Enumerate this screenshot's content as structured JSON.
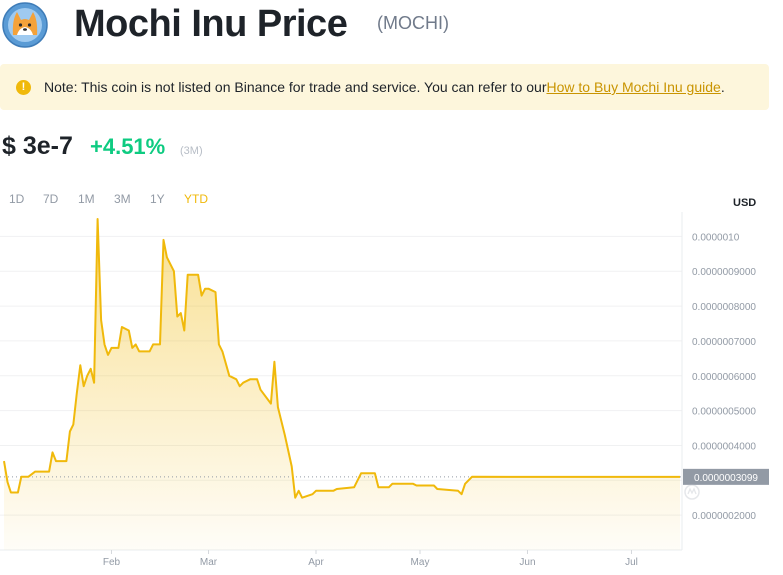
{
  "header": {
    "title": "Mochi Inu Price",
    "ticker": "(MOCHI)"
  },
  "note": {
    "text": "Note: This coin is not listed on Binance for trade and service. You can refer to our ",
    "link": "How to Buy Mochi Inu guide",
    "suffix": "."
  },
  "price": {
    "value": "$ 3e-7",
    "change": "+4.51%",
    "period": "(3M)"
  },
  "range_tabs": [
    {
      "label": "1D",
      "active": false
    },
    {
      "label": "7D",
      "active": false
    },
    {
      "label": "1M",
      "active": false
    },
    {
      "label": "3M",
      "active": false
    },
    {
      "label": "1Y",
      "active": false
    },
    {
      "label": "YTD",
      "active": true
    }
  ],
  "currency": "USD",
  "colors": {
    "accent": "#f0b90b",
    "positive": "#0ecb81",
    "note_bg": "#fdf6dc",
    "tag_bg": "#929aa5"
  },
  "icons": {
    "logo": "shiba-dog-coin-logo",
    "note": "exclamation-icon",
    "watermark": "coinmarketcap-watermark-icon"
  },
  "chart_data": {
    "type": "area",
    "title": "",
    "xlabel": "",
    "ylabel": "",
    "x_ticks": [
      "Feb",
      "Mar",
      "Apr",
      "May",
      "Jun",
      "Jul"
    ],
    "y_ticks": [
      "0.0000010",
      "0.0000009000",
      "0.0000008000",
      "0.0000007000",
      "0.0000006000",
      "0.0000005000",
      "0.0000004000",
      "0.0000002000"
    ],
    "current_price_label": "0.0000003099",
    "current_price": 3.099e-07,
    "ylim": [
      1e-07,
      1.07e-06
    ],
    "grid": true,
    "series": [
      {
        "values": [
          [
            "2022-01-01",
            3.55e-07
          ],
          [
            "2022-01-02",
            2.95e-07
          ],
          [
            "2022-01-03",
            2.65e-07
          ],
          [
            "2022-01-05",
            2.65e-07
          ],
          [
            "2022-01-06",
            3.1e-07
          ],
          [
            "2022-01-08",
            3.1e-07
          ],
          [
            "2022-01-10",
            3.25e-07
          ],
          [
            "2022-01-14",
            3.25e-07
          ],
          [
            "2022-01-15",
            3.8e-07
          ],
          [
            "2022-01-16",
            3.55e-07
          ],
          [
            "2022-01-19",
            3.55e-07
          ],
          [
            "2022-01-20",
            4.4e-07
          ],
          [
            "2022-01-21",
            4.6e-07
          ],
          [
            "2022-01-22",
            5.5e-07
          ],
          [
            "2022-01-23",
            6.3e-07
          ],
          [
            "2022-01-24",
            5.7e-07
          ],
          [
            "2022-01-25",
            6e-07
          ],
          [
            "2022-01-26",
            6.2e-07
          ],
          [
            "2022-01-27",
            5.8e-07
          ],
          [
            "2022-01-28",
            1.05e-06
          ],
          [
            "2022-01-29",
            7.6e-07
          ],
          [
            "2022-01-30",
            6.9e-07
          ],
          [
            "2022-01-31",
            6.6e-07
          ],
          [
            "2022-02-01",
            6.8e-07
          ],
          [
            "2022-02-03",
            6.8e-07
          ],
          [
            "2022-02-04",
            7.4e-07
          ],
          [
            "2022-02-06",
            7.3e-07
          ],
          [
            "2022-02-07",
            6.8e-07
          ],
          [
            "2022-02-08",
            6.9e-07
          ],
          [
            "2022-02-09",
            6.7e-07
          ],
          [
            "2022-02-12",
            6.7e-07
          ],
          [
            "2022-02-13",
            6.9e-07
          ],
          [
            "2022-02-15",
            6.9e-07
          ],
          [
            "2022-02-16",
            9.9e-07
          ],
          [
            "2022-02-17",
            9.4e-07
          ],
          [
            "2022-02-19",
            9e-07
          ],
          [
            "2022-02-20",
            7.7e-07
          ],
          [
            "2022-02-21",
            7.8e-07
          ],
          [
            "2022-02-22",
            7.3e-07
          ],
          [
            "2022-02-23",
            8.9e-07
          ],
          [
            "2022-02-26",
            8.9e-07
          ],
          [
            "2022-02-27",
            8.3e-07
          ],
          [
            "2022-02-28",
            8.5e-07
          ],
          [
            "2022-03-01",
            8.5e-07
          ],
          [
            "2022-03-03",
            8.4e-07
          ],
          [
            "2022-03-04",
            6.9e-07
          ],
          [
            "2022-03-05",
            6.7e-07
          ],
          [
            "2022-03-07",
            6e-07
          ],
          [
            "2022-03-09",
            5.9e-07
          ],
          [
            "2022-03-10",
            5.7e-07
          ],
          [
            "2022-03-11",
            5.8e-07
          ],
          [
            "2022-03-13",
            5.9e-07
          ],
          [
            "2022-03-15",
            5.9e-07
          ],
          [
            "2022-03-16",
            5.6e-07
          ],
          [
            "2022-03-19",
            5.2e-07
          ],
          [
            "2022-03-20",
            6.4e-07
          ],
          [
            "2022-03-21",
            5.1e-07
          ],
          [
            "2022-03-23",
            4.3e-07
          ],
          [
            "2022-03-25",
            3.4e-07
          ],
          [
            "2022-03-26",
            2.5e-07
          ],
          [
            "2022-03-27",
            2.7e-07
          ],
          [
            "2022-03-28",
            2.5e-07
          ],
          [
            "2022-03-31",
            2.6e-07
          ],
          [
            "2022-04-01",
            2.7e-07
          ],
          [
            "2022-04-06",
            2.7e-07
          ],
          [
            "2022-04-07",
            2.75e-07
          ],
          [
            "2022-04-12",
            2.8e-07
          ],
          [
            "2022-04-13",
            3e-07
          ],
          [
            "2022-04-14",
            3.2e-07
          ],
          [
            "2022-04-18",
            3.2e-07
          ],
          [
            "2022-04-19",
            2.8e-07
          ],
          [
            "2022-04-22",
            2.8e-07
          ],
          [
            "2022-04-23",
            2.9e-07
          ],
          [
            "2022-04-29",
            2.9e-07
          ],
          [
            "2022-04-30",
            2.85e-07
          ],
          [
            "2022-05-05",
            2.85e-07
          ],
          [
            "2022-05-06",
            2.75e-07
          ],
          [
            "2022-05-12",
            2.7e-07
          ],
          [
            "2022-05-13",
            2.6e-07
          ],
          [
            "2022-05-14",
            2.9e-07
          ],
          [
            "2022-05-16",
            3.1e-07
          ],
          [
            "2022-06-15",
            3.099e-07
          ],
          [
            "2022-07-15",
            3.099e-07
          ]
        ]
      }
    ]
  }
}
